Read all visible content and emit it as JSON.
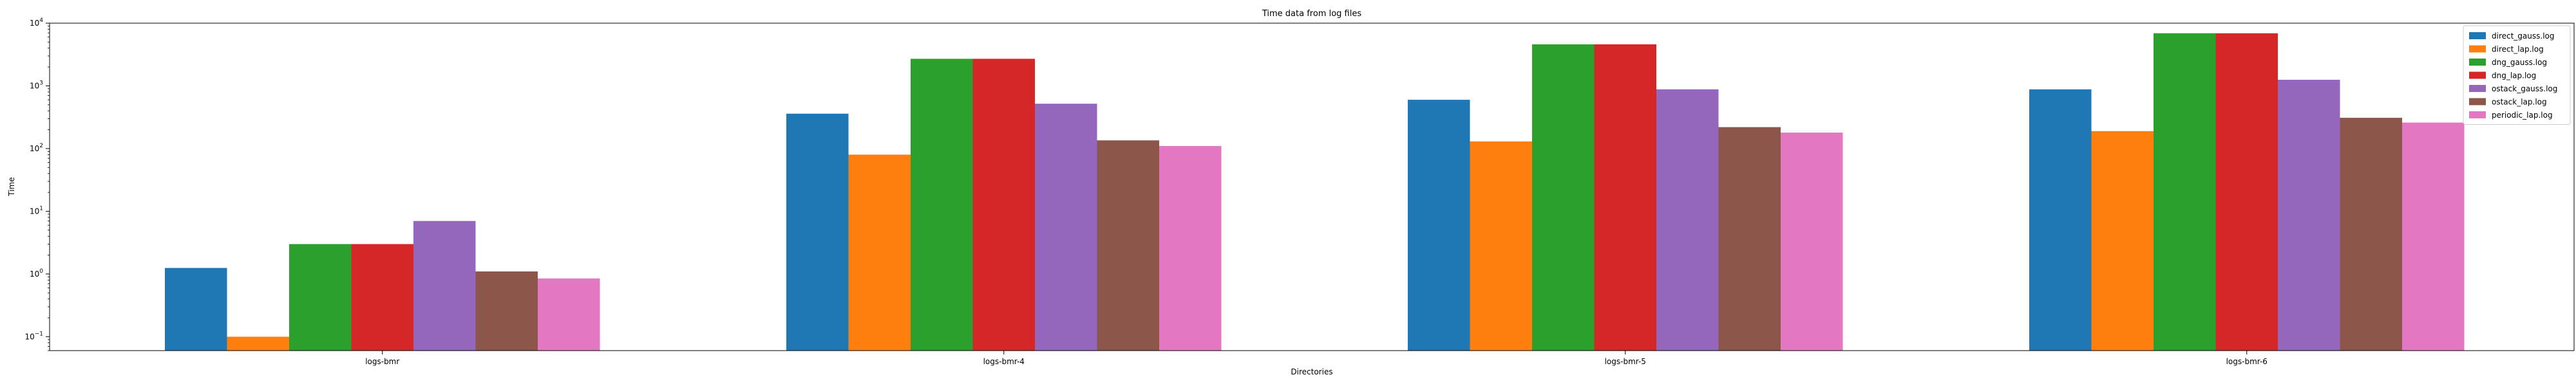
{
  "chart_data": {
    "type": "bar",
    "title": "Time data from log files",
    "xlabel": "Directories",
    "ylabel": "Time",
    "yscale": "log",
    "ylim": [
      0.06,
      10000
    ],
    "yticks": [
      {
        "value": 0.1,
        "base": "10",
        "exp": "−1"
      },
      {
        "value": 1,
        "base": "10",
        "exp": "0"
      },
      {
        "value": 10,
        "base": "10",
        "exp": "1"
      },
      {
        "value": 100,
        "base": "10",
        "exp": "2"
      },
      {
        "value": 1000,
        "base": "10",
        "exp": "3"
      },
      {
        "value": 10000,
        "base": "10",
        "exp": "4"
      }
    ],
    "categories": [
      "logs-bmr",
      "logs-bmr-4",
      "logs-bmr-5",
      "logs-bmr-6"
    ],
    "legend_position": "top-right",
    "grid": false,
    "series": [
      {
        "name": "direct_gauss.log",
        "color": "#1f77b4",
        "values": [
          1.25,
          360,
          600,
          880
        ]
      },
      {
        "name": "direct_lap.log",
        "color": "#ff7f0e",
        "values": [
          0.1,
          80,
          130,
          190
        ]
      },
      {
        "name": "dng_gauss.log",
        "color": "#2ca02c",
        "values": [
          3.0,
          2700,
          4600,
          6900
        ]
      },
      {
        "name": "dng_lap.log",
        "color": "#d62728",
        "values": [
          3.0,
          2700,
          4600,
          6900
        ]
      },
      {
        "name": "ostack_gauss.log",
        "color": "#9467bd",
        "values": [
          7.0,
          520,
          880,
          1250
        ]
      },
      {
        "name": "ostack_lap.log",
        "color": "#8c564b",
        "values": [
          1.1,
          135,
          220,
          310
        ]
      },
      {
        "name": "periodic_lap.log",
        "color": "#e377c2",
        "values": [
          0.85,
          110,
          180,
          260
        ]
      }
    ]
  }
}
